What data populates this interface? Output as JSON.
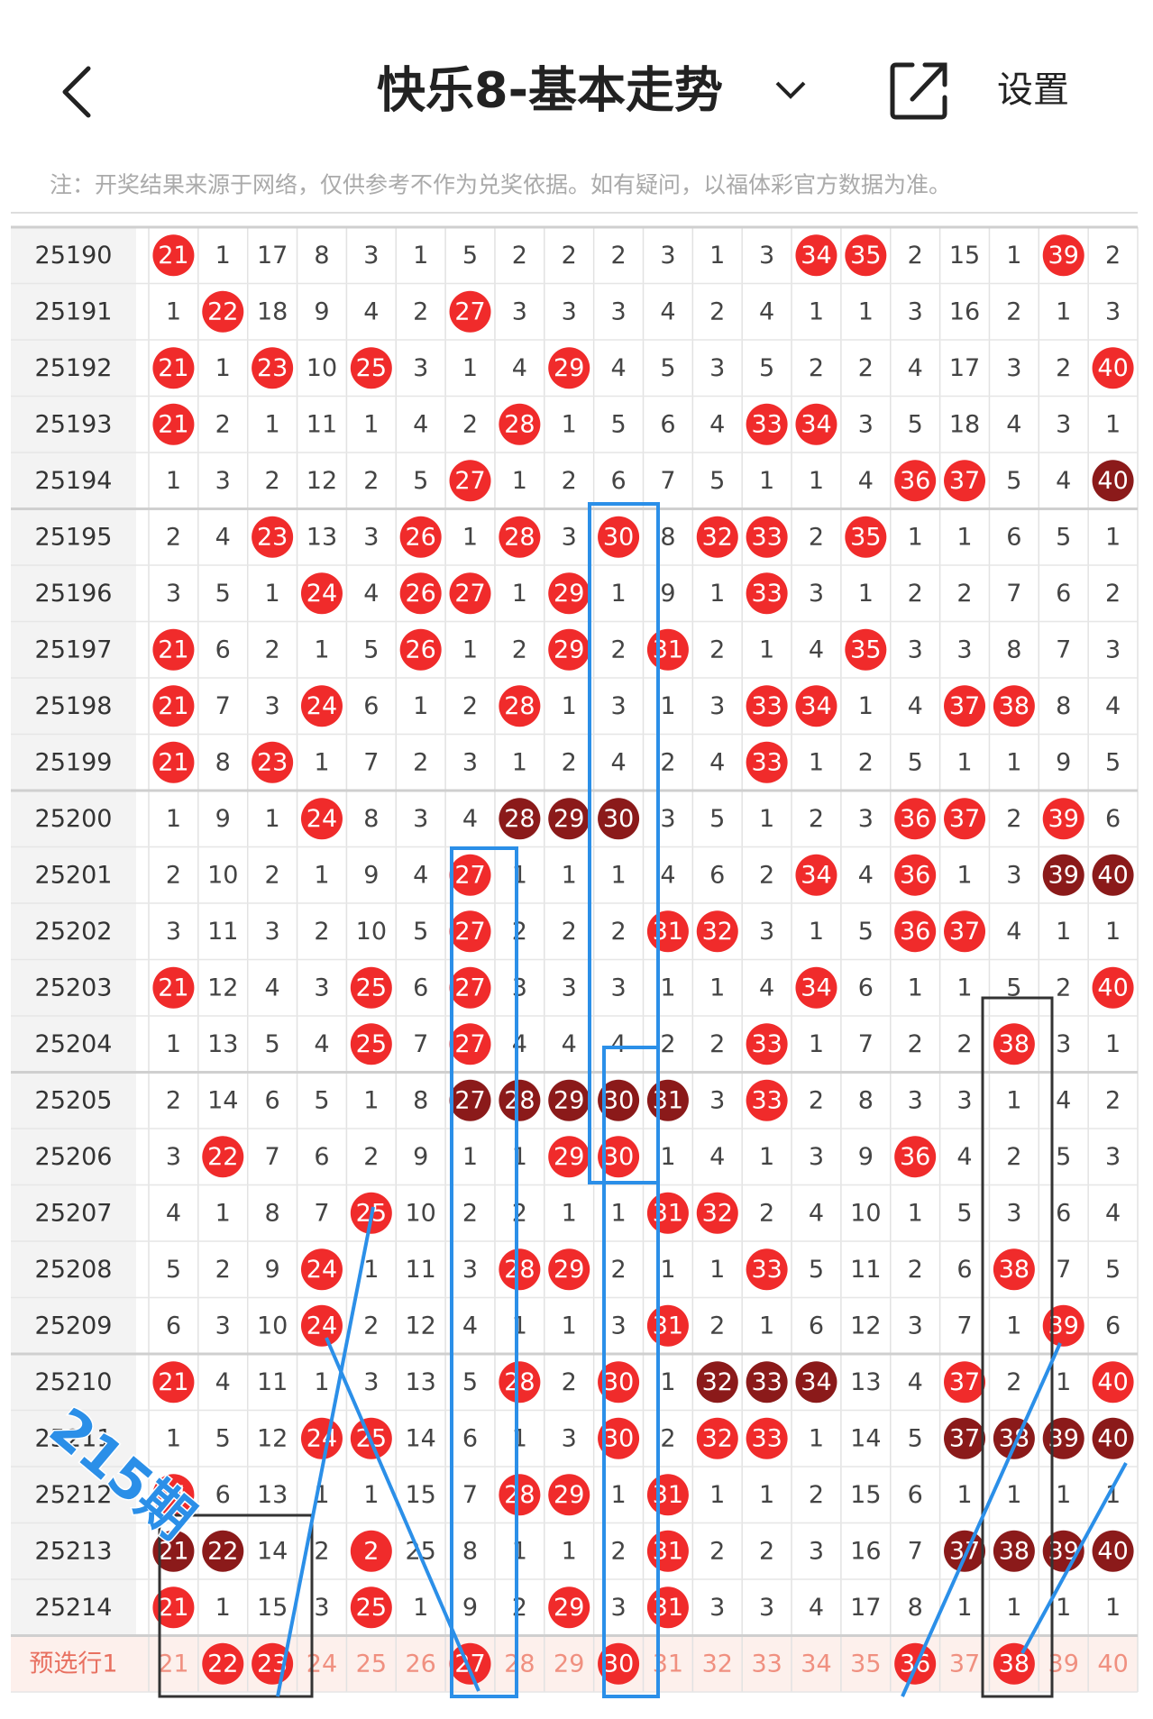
{
  "header": {
    "title": "快乐8-基本走势",
    "settings": "设置"
  },
  "note": "注：开奖结果来源于网络，仅供参考不作为兑奖依据。如有疑问，以福体彩官方数据为准。",
  "watermark": "215期",
  "rows": [
    {
      "period": "25190",
      "cells": [
        21,
        1,
        17,
        8,
        3,
        1,
        5,
        2,
        2,
        2,
        3,
        1,
        3,
        34,
        35,
        2,
        15,
        1,
        39,
        2
      ],
      "red": [
        0,
        13,
        14,
        18
      ],
      "dark": []
    },
    {
      "period": "25191",
      "cells": [
        1,
        22,
        18,
        9,
        4,
        2,
        27,
        3,
        3,
        3,
        4,
        2,
        4,
        1,
        1,
        3,
        16,
        2,
        1,
        3
      ],
      "red": [
        1,
        6
      ],
      "dark": []
    },
    {
      "period": "25192",
      "cells": [
        21,
        1,
        23,
        10,
        25,
        3,
        1,
        4,
        29,
        4,
        5,
        3,
        5,
        2,
        2,
        4,
        17,
        3,
        2,
        40
      ],
      "red": [
        0,
        2,
        4,
        8,
        19
      ],
      "dark": []
    },
    {
      "period": "25193",
      "cells": [
        21,
        2,
        1,
        11,
        1,
        4,
        2,
        28,
        1,
        5,
        6,
        4,
        33,
        34,
        3,
        5,
        18,
        4,
        3,
        1
      ],
      "red": [
        0,
        7,
        12,
        13
      ],
      "dark": []
    },
    {
      "period": "25194",
      "cells": [
        1,
        3,
        2,
        12,
        2,
        5,
        27,
        1,
        2,
        6,
        7,
        5,
        1,
        1,
        4,
        36,
        37,
        5,
        4,
        40
      ],
      "red": [
        6,
        15,
        16
      ],
      "dark": [
        19
      ]
    },
    {
      "period": "25195",
      "cells": [
        2,
        4,
        23,
        13,
        3,
        26,
        1,
        28,
        3,
        30,
        8,
        32,
        33,
        2,
        35,
        1,
        1,
        6,
        5,
        1
      ],
      "red": [
        2,
        5,
        7,
        9,
        11,
        12,
        14
      ],
      "dark": []
    },
    {
      "period": "25196",
      "cells": [
        3,
        5,
        1,
        24,
        4,
        26,
        27,
        1,
        29,
        1,
        9,
        1,
        33,
        3,
        1,
        2,
        2,
        7,
        6,
        2
      ],
      "red": [
        3,
        5,
        6,
        8,
        12
      ],
      "dark": []
    },
    {
      "period": "25197",
      "cells": [
        21,
        6,
        2,
        1,
        5,
        26,
        1,
        2,
        29,
        2,
        31,
        2,
        1,
        4,
        35,
        3,
        3,
        8,
        7,
        3
      ],
      "red": [
        0,
        5,
        8,
        10,
        14
      ],
      "dark": []
    },
    {
      "period": "25198",
      "cells": [
        21,
        7,
        3,
        24,
        6,
        1,
        2,
        28,
        1,
        3,
        1,
        3,
        33,
        34,
        1,
        4,
        37,
        38,
        8,
        4
      ],
      "red": [
        0,
        3,
        7,
        12,
        13,
        16,
        17
      ],
      "dark": []
    },
    {
      "period": "25199",
      "cells": [
        21,
        8,
        23,
        1,
        7,
        2,
        3,
        1,
        2,
        4,
        2,
        4,
        33,
        1,
        2,
        5,
        1,
        1,
        9,
        5
      ],
      "red": [
        0,
        2,
        12
      ],
      "dark": []
    },
    {
      "period": "25200",
      "cells": [
        1,
        9,
        1,
        24,
        8,
        3,
        4,
        28,
        29,
        30,
        3,
        5,
        1,
        2,
        3,
        36,
        37,
        2,
        39,
        6
      ],
      "red": [
        3,
        15,
        16,
        18
      ],
      "dark": [
        7,
        8,
        9
      ]
    },
    {
      "period": "25201",
      "cells": [
        2,
        10,
        2,
        1,
        9,
        4,
        27,
        1,
        1,
        1,
        4,
        6,
        2,
        34,
        4,
        36,
        1,
        3,
        39,
        40
      ],
      "red": [
        6,
        13,
        15
      ],
      "dark": [
        18,
        19
      ]
    },
    {
      "period": "25202",
      "cells": [
        3,
        11,
        3,
        2,
        10,
        5,
        27,
        2,
        2,
        2,
        31,
        32,
        3,
        1,
        5,
        36,
        37,
        4,
        1,
        1
      ],
      "red": [
        6,
        10,
        11,
        15,
        16
      ],
      "dark": []
    },
    {
      "period": "25203",
      "cells": [
        21,
        12,
        4,
        3,
        25,
        6,
        27,
        3,
        3,
        3,
        1,
        1,
        4,
        34,
        6,
        1,
        1,
        5,
        2,
        40
      ],
      "red": [
        0,
        4,
        6,
        13,
        19
      ],
      "dark": []
    },
    {
      "period": "25204",
      "cells": [
        1,
        13,
        5,
        4,
        25,
        7,
        27,
        4,
        4,
        4,
        2,
        2,
        33,
        1,
        7,
        2,
        2,
        38,
        3,
        1
      ],
      "red": [
        4,
        6,
        12,
        17
      ],
      "dark": []
    },
    {
      "period": "25205",
      "cells": [
        2,
        14,
        6,
        5,
        1,
        8,
        27,
        28,
        29,
        30,
        31,
        3,
        33,
        2,
        8,
        3,
        3,
        1,
        4,
        2
      ],
      "red": [
        12
      ],
      "dark": [
        6,
        7,
        8,
        9,
        10
      ]
    },
    {
      "period": "25206",
      "cells": [
        3,
        22,
        7,
        6,
        2,
        9,
        1,
        1,
        29,
        30,
        1,
        4,
        1,
        3,
        9,
        36,
        4,
        2,
        5,
        3
      ],
      "red": [
        1,
        8,
        9,
        15
      ],
      "dark": []
    },
    {
      "period": "25207",
      "cells": [
        4,
        1,
        8,
        7,
        25,
        10,
        2,
        2,
        1,
        1,
        31,
        32,
        2,
        4,
        10,
        1,
        5,
        3,
        6,
        4
      ],
      "red": [
        4,
        10,
        11
      ],
      "dark": []
    },
    {
      "period": "25208",
      "cells": [
        5,
        2,
        9,
        24,
        1,
        11,
        3,
        28,
        29,
        2,
        1,
        1,
        33,
        5,
        11,
        2,
        6,
        38,
        7,
        5
      ],
      "red": [
        3,
        7,
        8,
        12,
        17
      ],
      "dark": []
    },
    {
      "period": "25209",
      "cells": [
        6,
        3,
        10,
        24,
        2,
        12,
        4,
        1,
        1,
        3,
        31,
        2,
        1,
        6,
        12,
        3,
        7,
        1,
        39,
        6
      ],
      "red": [
        3,
        10,
        18
      ],
      "dark": []
    },
    {
      "period": "25210",
      "cells": [
        21,
        4,
        11,
        1,
        3,
        13,
        5,
        28,
        2,
        30,
        1,
        32,
        33,
        34,
        13,
        4,
        37,
        2,
        1,
        40
      ],
      "red": [
        0,
        7,
        9,
        16,
        19
      ],
      "dark": [
        11,
        12,
        13
      ]
    },
    {
      "period": "25211",
      "cells": [
        1,
        5,
        12,
        24,
        25,
        14,
        6,
        1,
        3,
        30,
        2,
        32,
        33,
        1,
        14,
        5,
        37,
        38,
        39,
        40
      ],
      "red": [
        3,
        4,
        9,
        11,
        12
      ],
      "dark": [
        16,
        17,
        18,
        19
      ]
    },
    {
      "period": "25212",
      "cells": [
        21,
        6,
        13,
        1,
        1,
        15,
        7,
        28,
        29,
        1,
        31,
        1,
        1,
        2,
        15,
        6,
        1,
        1,
        1,
        1
      ],
      "red": [
        0,
        7,
        8,
        10
      ],
      "dark": []
    },
    {
      "period": "25213",
      "cells": [
        21,
        22,
        14,
        2,
        2,
        25,
        8,
        1,
        1,
        2,
        31,
        2,
        2,
        3,
        16,
        7,
        37,
        38,
        39,
        40
      ],
      "red": [
        4,
        10
      ],
      "dark": [
        0,
        1,
        16,
        17,
        18,
        19
      ]
    },
    {
      "period": "25214",
      "cells": [
        21,
        1,
        15,
        3,
        25,
        1,
        9,
        2,
        29,
        3,
        31,
        3,
        3,
        4,
        17,
        8,
        1,
        1,
        1,
        1
      ],
      "red": [
        0,
        4,
        8,
        10
      ],
      "dark": []
    }
  ],
  "preselect": {
    "label": "预选行1",
    "cells": [
      21,
      22,
      23,
      24,
      25,
      26,
      27,
      28,
      29,
      30,
      31,
      32,
      33,
      34,
      35,
      36,
      37,
      38,
      39,
      40
    ],
    "red": [
      1,
      2,
      6,
      9,
      15,
      17
    ]
  }
}
